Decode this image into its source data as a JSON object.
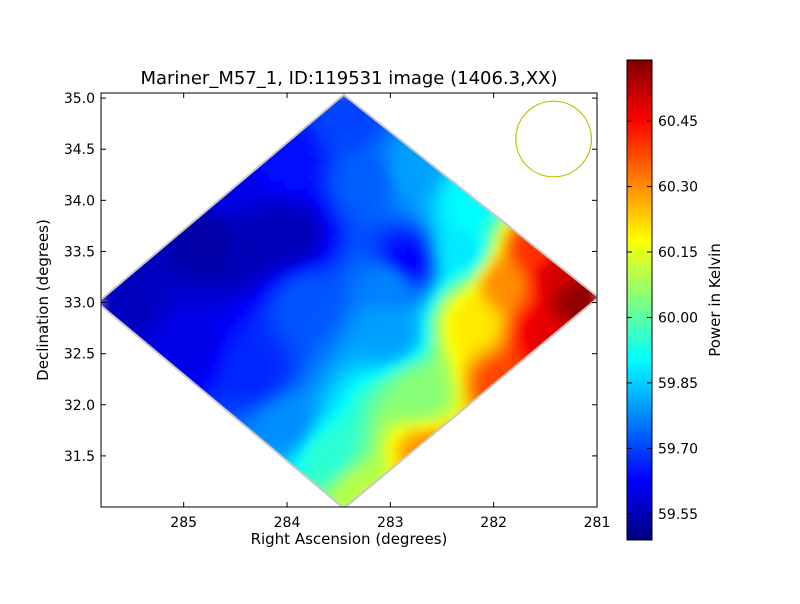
{
  "chart_data": {
    "type": "heatmap",
    "title": "Mariner_M57_1, ID:119531 image (1406.3,XX)",
    "xlabel": "Right Ascension (degrees)",
    "ylabel": "Declination (degrees)",
    "x_axis_inverted": true,
    "xlim": [
      285.8,
      281.0
    ],
    "ylim": [
      31.0,
      35.05
    ],
    "x_ticks": [
      {
        "value": 285,
        "label": "285"
      },
      {
        "value": 284,
        "label": "284"
      },
      {
        "value": 283,
        "label": "283"
      },
      {
        "value": 282,
        "label": "282"
      },
      {
        "value": 281,
        "label": "281"
      }
    ],
    "y_ticks": [
      {
        "value": 31.5,
        "label": "31.5"
      },
      {
        "value": 32.0,
        "label": "32.0"
      },
      {
        "value": 32.5,
        "label": "32.5"
      },
      {
        "value": 33.0,
        "label": "33.0"
      },
      {
        "value": 33.5,
        "label": "33.5"
      },
      {
        "value": 34.0,
        "label": "34.0"
      },
      {
        "value": 34.5,
        "label": "34.5"
      },
      {
        "value": 35.0,
        "label": "35.0"
      }
    ],
    "colorbar": {
      "label": "Power in Kelvin",
      "range": [
        59.49,
        60.59
      ],
      "ticks": [
        {
          "value": 59.55,
          "label": "59.55"
        },
        {
          "value": 59.7,
          "label": "59.70"
        },
        {
          "value": 59.85,
          "label": "59.85"
        },
        {
          "value": 60.0,
          "label": "60.00"
        },
        {
          "value": 60.15,
          "label": "60.15"
        },
        {
          "value": 60.3,
          "label": "60.30"
        },
        {
          "value": 60.45,
          "label": "60.45"
        }
      ],
      "colormap": [
        "#00007f",
        "#0000ff",
        "#007fff",
        "#00ffff",
        "#7fff7f",
        "#ffff00",
        "#ff7f00",
        "#ff0000",
        "#7f0000"
      ]
    },
    "region_outline": [
      {
        "ra": 285.82,
        "dec": 33.0
      },
      {
        "ra": 283.45,
        "dec": 35.02
      },
      {
        "ra": 281.0,
        "dec": 33.05
      },
      {
        "ra": 283.45,
        "dec": 31.0
      }
    ],
    "field_samples": [
      {
        "ra": 285.5,
        "dec": 33.0,
        "value": 59.56
      },
      {
        "ra": 284.75,
        "dec": 33.6,
        "value": 59.53
      },
      {
        "ra": 284.4,
        "dec": 33.55,
        "value": 59.55
      },
      {
        "ra": 284.0,
        "dec": 33.65,
        "value": 59.55
      },
      {
        "ra": 284.6,
        "dec": 34.1,
        "value": 59.6
      },
      {
        "ra": 284.0,
        "dec": 34.4,
        "value": 59.64
      },
      {
        "ra": 283.4,
        "dec": 34.8,
        "value": 59.7
      },
      {
        "ra": 283.2,
        "dec": 34.2,
        "value": 59.73
      },
      {
        "ra": 285.0,
        "dec": 32.6,
        "value": 59.6
      },
      {
        "ra": 284.3,
        "dec": 32.3,
        "value": 59.67
      },
      {
        "ra": 284.0,
        "dec": 31.8,
        "value": 59.78
      },
      {
        "ra": 283.8,
        "dec": 33.0,
        "value": 59.72
      },
      {
        "ra": 283.0,
        "dec": 33.2,
        "value": 59.77
      },
      {
        "ra": 282.85,
        "dec": 33.4,
        "value": 59.63
      },
      {
        "ra": 283.0,
        "dec": 32.7,
        "value": 59.8
      },
      {
        "ra": 283.6,
        "dec": 31.5,
        "value": 59.95
      },
      {
        "ra": 283.3,
        "dec": 31.15,
        "value": 60.1
      },
      {
        "ra": 282.7,
        "dec": 32.1,
        "value": 60.05
      },
      {
        "ra": 282.3,
        "dec": 33.5,
        "value": 59.88
      },
      {
        "ra": 282.2,
        "dec": 34.0,
        "value": 59.9
      },
      {
        "ra": 282.8,
        "dec": 34.3,
        "value": 59.8
      },
      {
        "ra": 282.2,
        "dec": 32.8,
        "value": 60.2
      },
      {
        "ra": 282.6,
        "dec": 31.5,
        "value": 60.3
      },
      {
        "ra": 281.9,
        "dec": 32.2,
        "value": 60.38
      },
      {
        "ra": 281.9,
        "dec": 33.2,
        "value": 60.3
      },
      {
        "ra": 281.6,
        "dec": 33.5,
        "value": 60.4
      },
      {
        "ra": 281.5,
        "dec": 32.7,
        "value": 60.48
      },
      {
        "ra": 281.2,
        "dec": 33.0,
        "value": 60.57
      },
      {
        "ra": 281.4,
        "dec": 33.3,
        "value": 60.5
      }
    ],
    "beam_circle": {
      "ra": 281.42,
      "dec": 34.6,
      "radius_deg": 0.37,
      "color": "#bfbf00"
    }
  }
}
